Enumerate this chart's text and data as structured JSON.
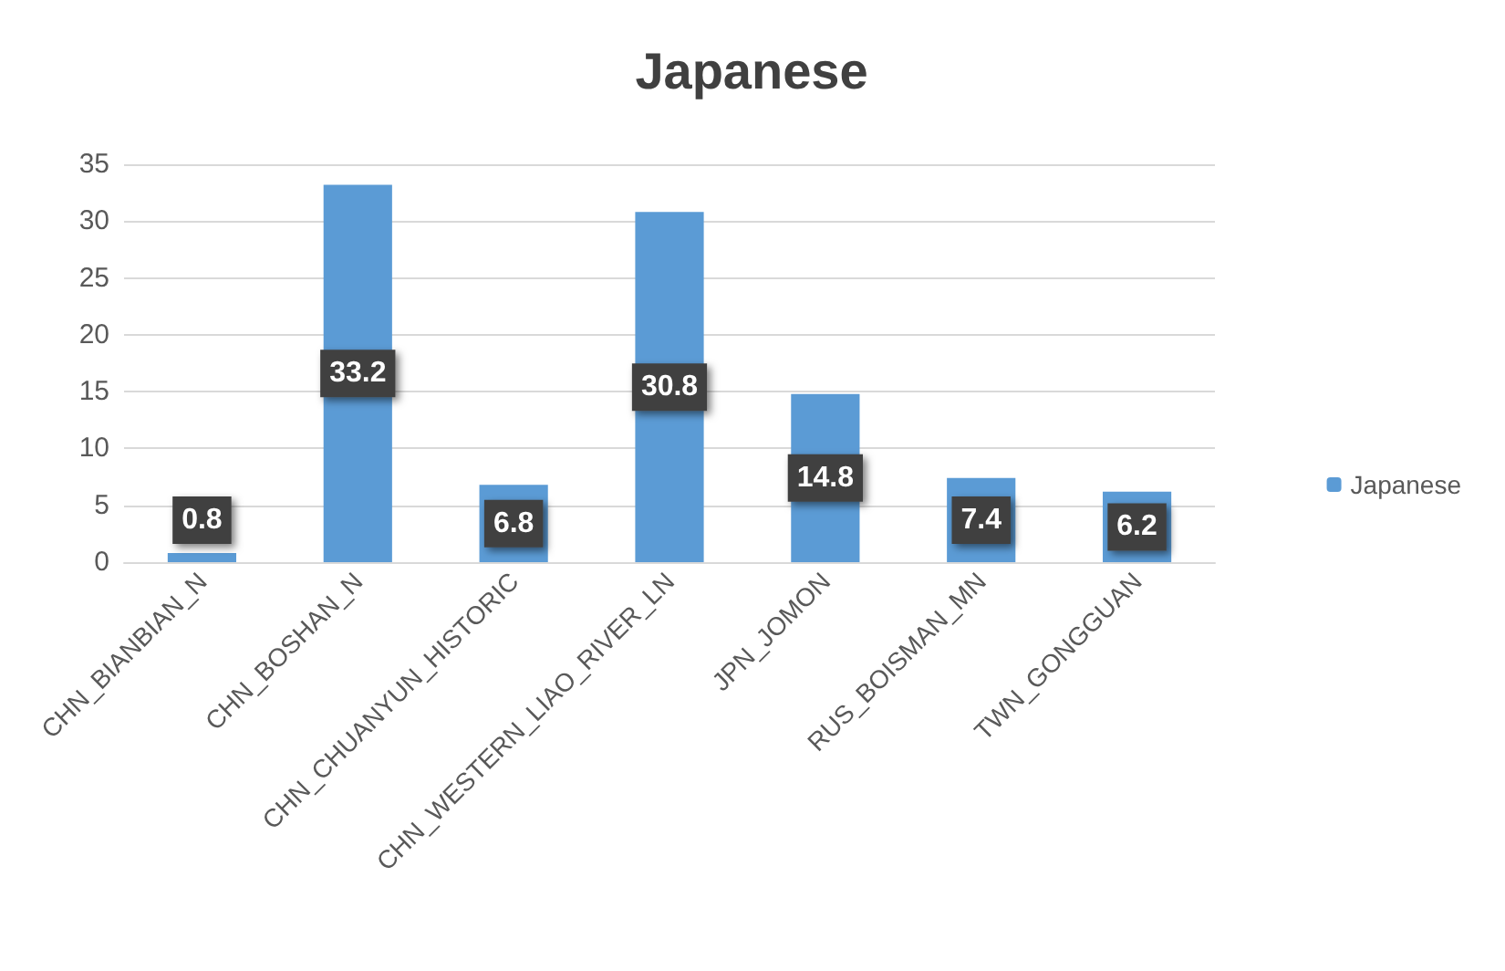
{
  "chart_data": {
    "type": "bar",
    "title": "Japanese",
    "categories": [
      "CHN_BIANBIAN_N",
      "CHN_BOSHAN_N",
      "CHN_CHUANYUN_HISTORIC",
      "CHN_WESTERN_LIAO_RIVER_LN",
      "JPN_JOMON",
      "RUS_BOISMAN_MN",
      "TWN_GONGGUAN"
    ],
    "series": [
      {
        "name": "Japanese",
        "color": "#5b9bd5",
        "values": [
          0.8,
          33.2,
          6.8,
          30.8,
          14.8,
          7.4,
          6.2
        ]
      }
    ],
    "ylim": [
      0,
      35
    ],
    "yticks": [
      0,
      5,
      10,
      15,
      20,
      25,
      30,
      35
    ],
    "grid": "y",
    "legend": "right",
    "data_labels": true
  }
}
